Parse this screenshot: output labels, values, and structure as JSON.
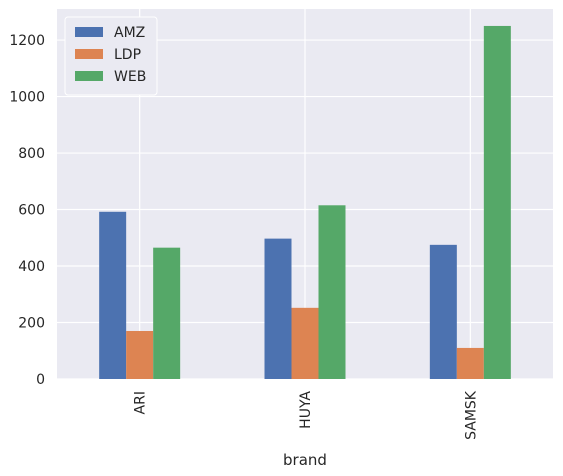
{
  "chart_data": {
    "type": "bar",
    "categories": [
      "ARI",
      "HUYA",
      "SAMSK"
    ],
    "series": [
      {
        "name": "AMZ",
        "values": [
          592,
          497,
          475
        ]
      },
      {
        "name": "LDP",
        "values": [
          170,
          252,
          110
        ]
      },
      {
        "name": "WEB",
        "values": [
          465,
          615,
          1250
        ]
      }
    ],
    "title": "",
    "xlabel": "brand",
    "ylabel": "",
    "ylim": [
      0,
      1310
    ],
    "yticks": [
      0,
      200,
      400,
      600,
      800,
      1000,
      1200
    ],
    "ytick_labels": [
      "0",
      "200",
      "400",
      "600",
      "800",
      "1000",
      "1200"
    ],
    "grid": true,
    "legend": "top-left",
    "colors": {
      "AMZ": "#4c72b0",
      "LDP": "#dd8452",
      "WEB": "#55a868",
      "plot_background": "#eaeaf2",
      "grid": "#ffffff"
    }
  }
}
